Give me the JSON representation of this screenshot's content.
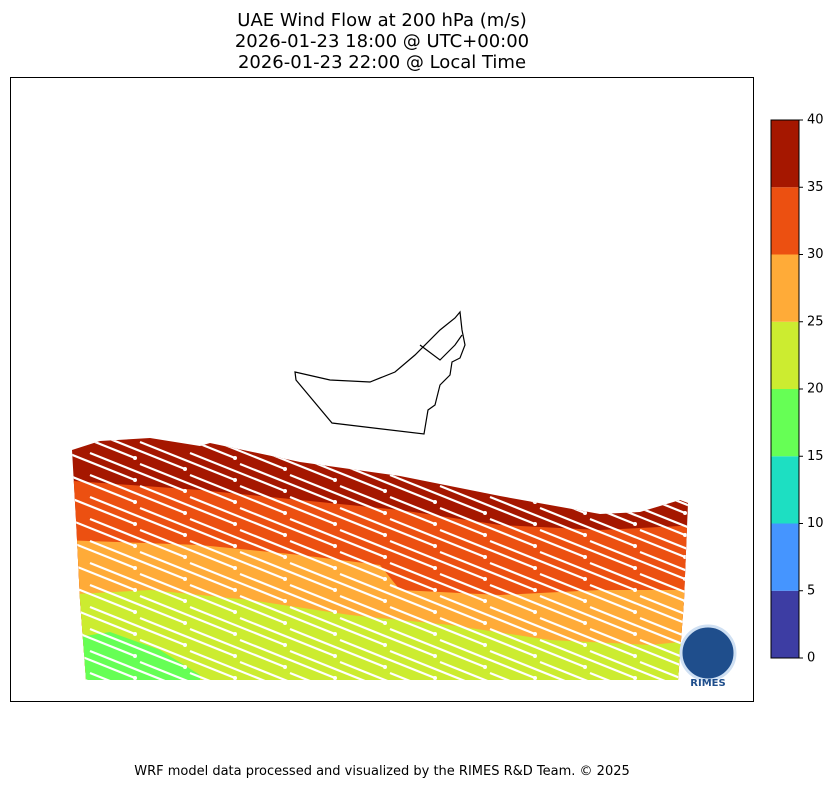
{
  "title": [
    "UAE Wind Flow at 200 hPa (m/s)",
    "2026-01-23 18:00 @ UTC+00:00",
    "2026-01-23 22:00 @ Local Time"
  ],
  "colorbar": {
    "ticks": [
      0,
      5,
      10,
      15,
      20,
      25,
      30,
      35,
      40
    ],
    "colors": [
      "#3d3da3",
      "#4595ff",
      "#1ddfc2",
      "#66ff55",
      "#ccec30",
      "#ffab38",
      "#ec5011",
      "#a51700"
    ]
  },
  "footer": "WRF model data processed and visualized by the RIMES R&D Team. © 2025",
  "logo": "RIMES"
}
